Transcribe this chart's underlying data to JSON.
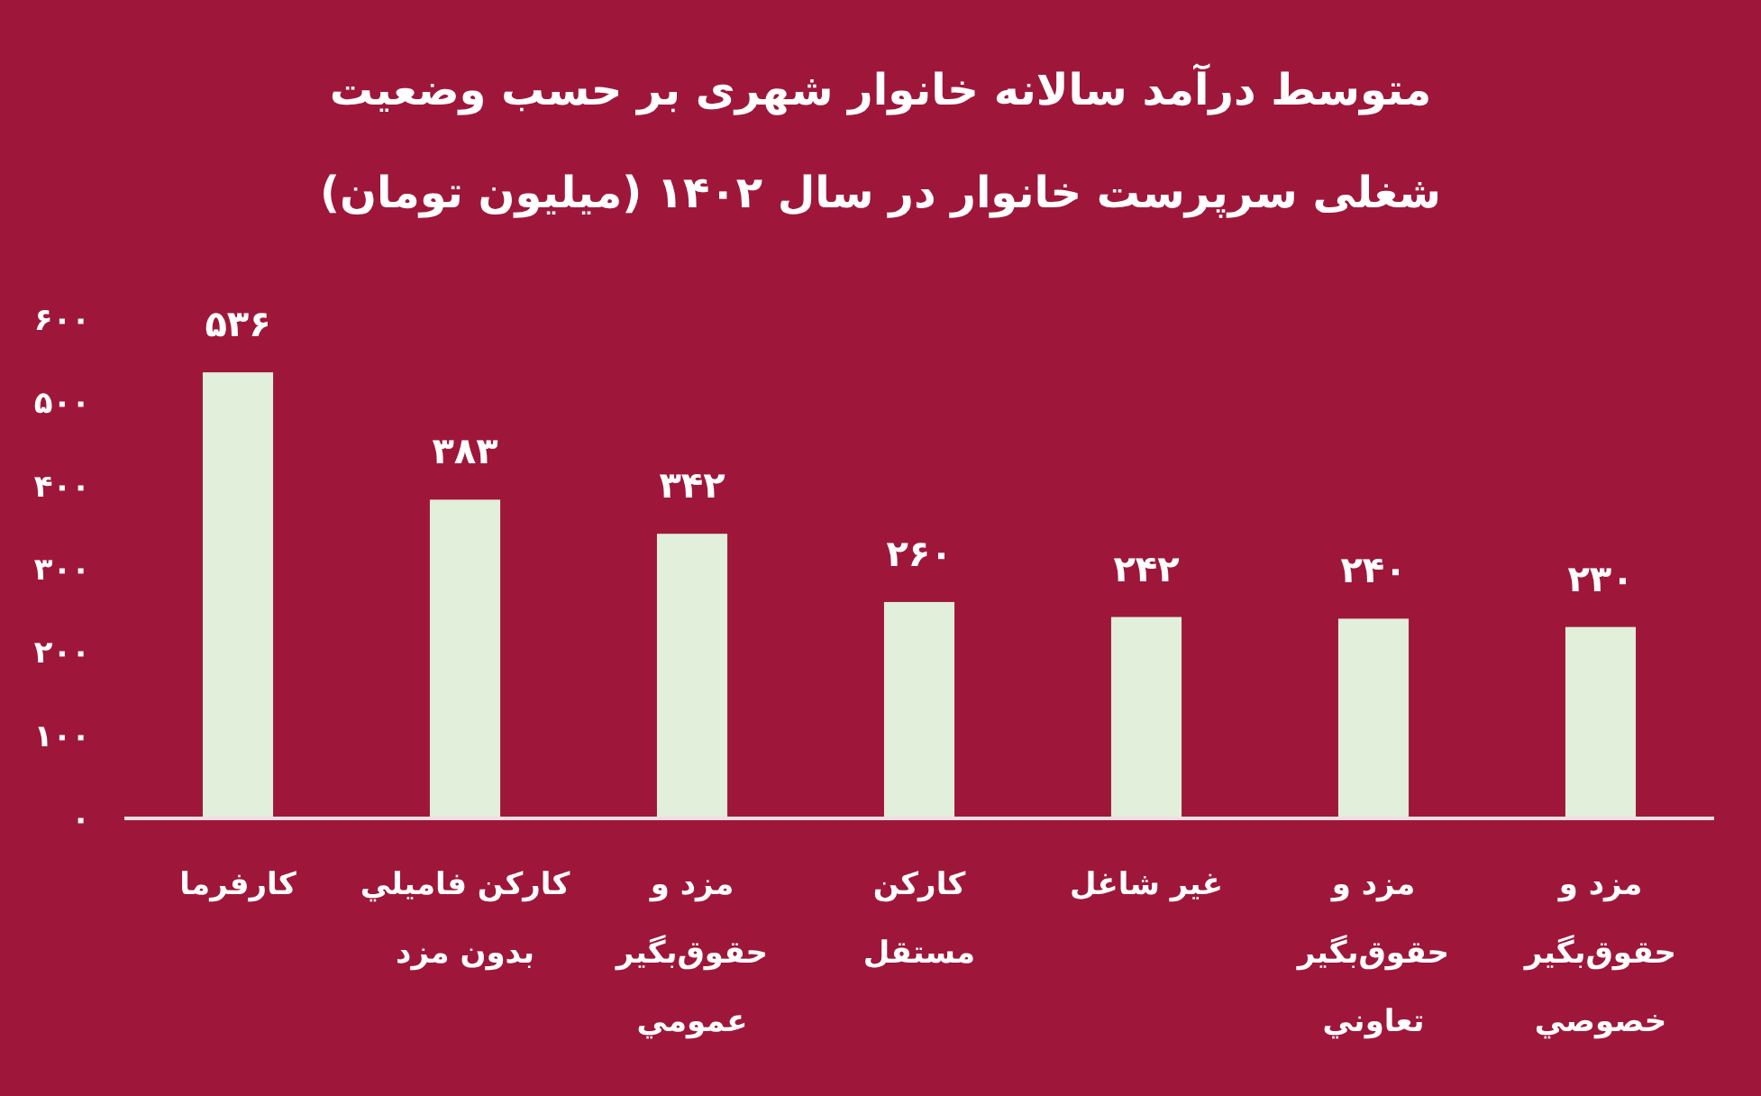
{
  "chart_data": {
    "type": "bar",
    "title": "متوسط درآمد سالانه خانوار شهری بر حسب وضعیت\nشغلی سرپرست خانوار در سال ۱۴۰۲ (میلیون تومان)",
    "categories": [
      "کارفرما",
      "کارکن فاميلي\nبدون مزد",
      "مزد و\nحقوق‌بگير\nعمومي",
      "کارکن\nمستقل",
      "غير شاغل",
      "مزد و\nحقوق‌بگير\nتعاوني",
      "مزد و\nحقوق‌بگير\nخصوصي"
    ],
    "values": [
      536,
      383,
      342,
      260,
      242,
      240,
      230
    ],
    "value_labels": [
      "۵۳۶",
      "۳۸۳",
      "۳۴۲",
      "۲۶۰",
      "۲۴۲",
      "۲۴۰",
      "۲۳۰"
    ],
    "color": "#e2efda",
    "ylim": [
      0,
      600
    ],
    "yticks": [
      {
        "value": 0,
        "label": "۰"
      },
      {
        "value": 100,
        "label": "۱۰۰"
      },
      {
        "value": 200,
        "label": "۲۰۰"
      },
      {
        "value": 300,
        "label": "۳۰۰"
      },
      {
        "value": 400,
        "label": "۴۰۰"
      },
      {
        "value": 500,
        "label": "۵۰۰"
      },
      {
        "value": 600,
        "label": "۶۰۰"
      }
    ]
  }
}
